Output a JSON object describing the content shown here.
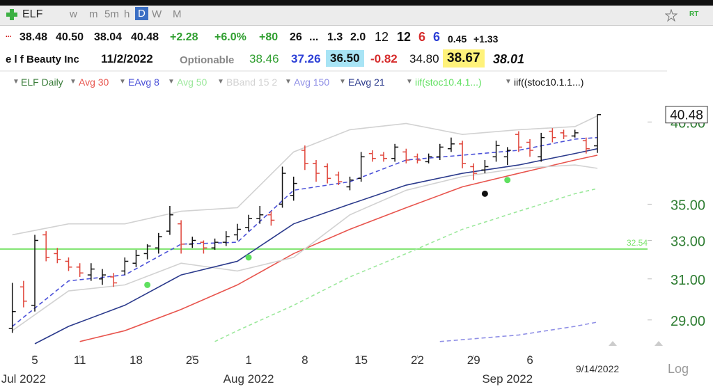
{
  "toolbar": {
    "symbol": "ELF",
    "intervals": [
      "w",
      "m",
      "5m",
      "h",
      "D",
      "W",
      "M"
    ],
    "rt": "RT"
  },
  "quote": {
    "row1": [
      "...",
      "38.48",
      "40.50",
      "38.04",
      "40.48",
      "+2.28",
      "+6.0%",
      "+80",
      "26",
      "...",
      "1.3",
      "2.0",
      "12",
      "12",
      "6",
      "6",
      "0.45",
      "+1.33"
    ],
    "row2": [
      "e l f Beauty Inc",
      "11/2/2022",
      "Optionable",
      "38.46",
      "37.26",
      "36.50",
      "-0.82",
      "34.80",
      "38.67",
      "38.01"
    ]
  },
  "chart_data": {
    "type": "ohlc",
    "yscale": "log",
    "scale_label": "Log",
    "categories": [
      "2022-06-30",
      "2022-07-01",
      "2022-07-05",
      "2022-07-06",
      "2022-07-07",
      "2022-07-08",
      "2022-07-11",
      "2022-07-12",
      "2022-07-13",
      "2022-07-14",
      "2022-07-15",
      "2022-07-18",
      "2022-07-19",
      "2022-07-20",
      "2022-07-21",
      "2022-07-22",
      "2022-07-25",
      "2022-07-26",
      "2022-07-27",
      "2022-07-28",
      "2022-07-29",
      "2022-08-01",
      "2022-08-02",
      "2022-08-03",
      "2022-08-04",
      "2022-08-05",
      "2022-08-08",
      "2022-08-09",
      "2022-08-10",
      "2022-08-11",
      "2022-08-12",
      "2022-08-15",
      "2022-08-16",
      "2022-08-17",
      "2022-08-18",
      "2022-08-19",
      "2022-08-22",
      "2022-08-23",
      "2022-08-24",
      "2022-08-25",
      "2022-08-26",
      "2022-08-29",
      "2022-08-30",
      "2022-08-31",
      "2022-09-01",
      "2022-09-02",
      "2022-09-06",
      "2022-09-07",
      "2022-09-08",
      "2022-09-09",
      "2022-09-12",
      "2022-09-13",
      "2022-09-14"
    ],
    "ohlc": {
      "name": "ELF Daily",
      "legend_color": "#3a7d3a",
      "up_color": "#111111",
      "down_color": "#e0453a",
      "open": [
        28.6,
        30.6,
        29.7,
        33.3,
        32.3,
        31.9,
        31.6,
        31.2,
        31.0,
        31.1,
        31.4,
        31.8,
        32.3,
        32.6,
        33.5,
        33.9,
        32.8,
        32.9,
        32.6,
        32.9,
        33.3,
        33.7,
        34.2,
        34.4,
        35.0,
        35.5,
        38.2,
        37.4,
        37.2,
        36.7,
        36.0,
        36.5,
        38.0,
        37.9,
        37.7,
        38.1,
        37.8,
        37.5,
        37.8,
        38.3,
        38.6,
        37.2,
        37.0,
        37.8,
        37.8,
        39.2,
        38.7,
        37.8,
        39.4,
        39.3,
        39.1,
        38.8,
        38.48
      ],
      "high": [
        30.8,
        30.9,
        33.3,
        33.5,
        32.6,
        32.1,
        31.8,
        31.8,
        31.5,
        31.3,
        32.1,
        32.5,
        32.8,
        33.4,
        34.9,
        34.1,
        33.2,
        33.0,
        33.1,
        33.5,
        33.9,
        34.4,
        34.9,
        34.6,
        37.2,
        36.6,
        38.5,
        37.6,
        37.4,
        36.9,
        36.6,
        38.1,
        38.2,
        38.1,
        38.6,
        38.3,
        38.0,
        38.0,
        38.6,
        39.0,
        38.8,
        37.4,
        37.6,
        38.8,
        38.4,
        39.4,
        38.9,
        39.3,
        39.6,
        39.5,
        39.5,
        39.0,
        40.5
      ],
      "low": [
        28.4,
        29.6,
        29.4,
        31.9,
        31.8,
        31.4,
        31.1,
        30.9,
        30.7,
        30.6,
        31.2,
        31.6,
        32.0,
        32.3,
        33.3,
        32.3,
        32.6,
        32.3,
        32.5,
        32.7,
        33.0,
        33.5,
        33.9,
        33.8,
        34.8,
        35.2,
        37.0,
        36.3,
        36.2,
        36.1,
        35.8,
        36.3,
        37.5,
        37.5,
        37.5,
        37.4,
        37.4,
        37.4,
        37.6,
        38.1,
        37.1,
        36.4,
        36.8,
        37.5,
        37.3,
        38.1,
        37.8,
        37.5,
        38.7,
        38.9,
        39.0,
        38.0,
        38.04
      ],
      "close": [
        29.4,
        29.9,
        33.0,
        32.1,
        32.0,
        31.6,
        31.3,
        31.5,
        31.2,
        30.8,
        31.9,
        32.2,
        32.7,
        33.2,
        34.4,
        32.8,
        33.0,
        32.6,
        32.9,
        33.2,
        33.6,
        34.2,
        34.4,
        34.1,
        36.8,
        36.2,
        37.4,
        36.8,
        36.5,
        36.3,
        36.4,
        37.8,
        37.7,
        37.7,
        38.4,
        37.6,
        37.6,
        37.8,
        38.4,
        38.6,
        37.4,
        36.8,
        37.2,
        38.5,
        38.2,
        38.4,
        38.2,
        39.0,
        39.0,
        39.1,
        39.3,
        38.3,
        40.48
      ]
    },
    "lines": [
      {
        "name": "Avg 30",
        "color": "#e8554e",
        "dash": "",
        "dates": [
          "2022-07-11",
          "2022-07-15",
          "2022-07-22",
          "2022-07-29",
          "2022-08-05",
          "2022-08-12",
          "2022-08-19",
          "2022-08-26",
          "2022-09-02",
          "2022-09-12",
          "2022-09-14"
        ],
        "values": [
          28.0,
          28.5,
          29.5,
          30.7,
          32.3,
          33.6,
          34.8,
          36.0,
          36.8,
          37.6,
          37.9
        ]
      },
      {
        "name": "EAvg 8",
        "color": "#4a50d8",
        "dash": "6 4",
        "dates": [
          "2022-06-30",
          "2022-07-08",
          "2022-07-15",
          "2022-07-22",
          "2022-07-29",
          "2022-08-05",
          "2022-08-12",
          "2022-08-19",
          "2022-08-26",
          "2022-09-02",
          "2022-09-12",
          "2022-09-14"
        ],
        "values": [
          28.7,
          30.9,
          31.2,
          32.8,
          32.9,
          35.8,
          36.3,
          37.6,
          37.9,
          38.2,
          38.9,
          39.0
        ]
      },
      {
        "name": "Avg 50",
        "color": "#9be89b",
        "dash": "5 4",
        "dates": [
          "2022-07-27",
          "2022-07-29",
          "2022-08-05",
          "2022-08-12",
          "2022-08-19",
          "2022-08-26",
          "2022-09-02",
          "2022-09-12",
          "2022-09-14"
        ],
        "values": [
          28.0,
          28.5,
          29.7,
          31.1,
          32.3,
          33.6,
          34.6,
          35.6,
          35.9
        ]
      },
      {
        "name": "BBand 15 2",
        "color": "#d2d2d2",
        "dash": "",
        "dates": [
          "2022-06-30",
          "2022-07-08",
          "2022-07-15",
          "2022-07-22",
          "2022-07-29",
          "2022-08-05",
          "2022-08-12",
          "2022-08-19",
          "2022-08-26",
          "2022-09-02",
          "2022-09-12",
          "2022-09-14"
        ],
        "values": [
          33.3,
          33.9,
          33.9,
          34.6,
          34.8,
          38.1,
          39.5,
          39.9,
          39.2,
          39.5,
          39.7,
          40.4
        ],
        "lower": [
          28.5,
          30.4,
          30.7,
          31.8,
          31.4,
          32.1,
          34.4,
          35.8,
          36.6,
          37.1,
          37.3,
          37.1
        ]
      },
      {
        "name": "Avg 150",
        "color": "#8f8fe6",
        "dash": "6 4",
        "dates": [
          "2022-08-24",
          "2022-09-02",
          "2022-09-12",
          "2022-09-14"
        ],
        "values": [
          28.0,
          28.3,
          28.7,
          28.9
        ]
      },
      {
        "name": "EAvg 21",
        "color": "#2b3a8c",
        "dash": "",
        "dates": [
          "2022-07-05",
          "2022-07-08",
          "2022-07-15",
          "2022-07-22",
          "2022-07-29",
          "2022-08-05",
          "2022-08-12",
          "2022-08-19",
          "2022-08-26",
          "2022-09-02",
          "2022-09-12",
          "2022-09-14"
        ],
        "values": [
          27.9,
          28.7,
          29.7,
          31.2,
          31.9,
          33.9,
          35.0,
          36.1,
          36.8,
          37.3,
          38.0,
          38.3
        ]
      }
    ],
    "signals": [
      {
        "name": "iif(stoc10.4.1...)",
        "color": "#5fe05f",
        "dates": [
          "2022-07-19",
          "2022-08-01",
          "2022-09-01"
        ],
        "values": [
          30.7,
          32.1,
          36.4
        ]
      },
      {
        "name": "iif((stoc10.1.1...)",
        "color": "#111111",
        "dates": [
          "2022-08-30"
        ],
        "values": [
          35.6
        ]
      }
    ],
    "hline": {
      "value": 32.54,
      "color": "#7be36b"
    },
    "ylim": [
      27.4,
      42.1
    ],
    "yticks": [
      {
        "value": 29,
        "label": "29.00"
      },
      {
        "value": 31,
        "label": "31.00"
      },
      {
        "value": 33,
        "label": "33.00"
      },
      {
        "value": 35,
        "label": "35.00"
      },
      {
        "value": 40,
        "label": "40.00"
      }
    ],
    "xticks": [
      {
        "value": "2022-07-05",
        "label": "5"
      },
      {
        "value": "2022-07-11",
        "label": "11"
      },
      {
        "value": "2022-07-18",
        "label": "18"
      },
      {
        "value": "2022-07-25",
        "label": "25"
      },
      {
        "value": "2022-08-01",
        "label": "1"
      },
      {
        "value": "2022-08-08",
        "label": "8"
      },
      {
        "value": "2022-08-15",
        "label": "15"
      },
      {
        "value": "2022-08-22",
        "label": "22"
      },
      {
        "value": "2022-08-29",
        "label": "29"
      },
      {
        "value": "2022-09-06",
        "label": "6"
      }
    ],
    "month_ticks": [
      {
        "value": "2022-07-01",
        "label": "Jul 2022"
      },
      {
        "value": "2022-08-01",
        "label": "Aug 2022"
      },
      {
        "value": "2022-09-01",
        "label": "Sep 2022"
      }
    ],
    "date_label": {
      "value": "2022-09-14",
      "label": "9/14/2022"
    }
  }
}
